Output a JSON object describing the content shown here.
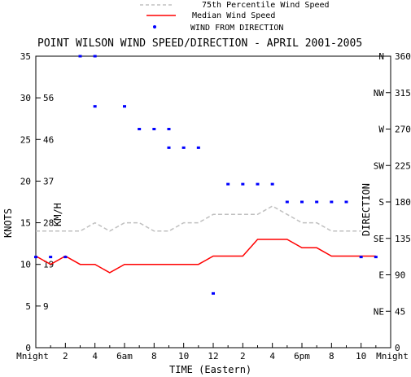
{
  "chart_data": {
    "type": "line",
    "title": "POINT WILSON WIND SPEED/DIRECTION - APRIL 2001-2005",
    "xlabel": "TIME (Eastern)",
    "ylabel_left": "KNOTS",
    "ylabel_left_inner": "KM/H",
    "ylabel_right": "DIRECTION",
    "x_ticks": [
      "Mnight",
      "2",
      "4",
      "6am",
      "8",
      "10",
      "12",
      "2",
      "4",
      "6pm",
      "8",
      "10",
      "Mnight"
    ],
    "xlim": [
      0,
      24
    ],
    "ylim": [
      0,
      35
    ],
    "knots_ticks": [
      "0",
      "5",
      "10",
      "15",
      "20",
      "25",
      "30",
      "35"
    ],
    "kmh_ticks": [
      {
        "label": "9",
        "knots": 5
      },
      {
        "label": "19",
        "knots": 10
      },
      {
        "label": "28",
        "knots": 15
      },
      {
        "label": "37",
        "knots": 20
      },
      {
        "label": "46",
        "knots": 25
      },
      {
        "label": "56",
        "knots": 30
      }
    ],
    "direction_ticks": [
      {
        "label": "N",
        "deg": 360
      },
      {
        "label": "NW",
        "deg": 315
      },
      {
        "label": "W",
        "deg": 270
      },
      {
        "label": "SW",
        "deg": 225
      },
      {
        "label": "S",
        "deg": 180
      },
      {
        "label": "SE",
        "deg": 135
      },
      {
        "label": "E",
        "deg": 90
      },
      {
        "label": "NE",
        "deg": 45
      }
    ],
    "direction_values": [
      "360",
      "315",
      "270",
      "225",
      "180",
      "135",
      "90",
      "45",
      "0"
    ],
    "legend": [
      "75th Percentile Wind Speed",
      "Median Wind Speed",
      "WIND FROM DIRECTION"
    ],
    "series": [
      {
        "name": "75th Percentile Wind Speed",
        "color": "#c0c0c0",
        "style": "dashed",
        "points": [
          [
            0,
            14
          ],
          [
            1,
            14
          ],
          [
            2,
            14
          ],
          [
            3,
            14
          ],
          [
            4,
            15
          ],
          [
            5,
            14
          ],
          [
            6,
            15
          ],
          [
            7,
            15
          ],
          [
            8,
            14
          ],
          [
            9,
            14
          ],
          [
            10,
            15
          ],
          [
            11,
            15
          ],
          [
            12,
            16
          ],
          [
            13,
            16
          ],
          [
            14,
            16
          ],
          [
            15,
            16
          ],
          [
            16,
            17
          ],
          [
            17,
            16
          ],
          [
            18,
            15
          ],
          [
            19,
            15
          ],
          [
            20,
            14
          ],
          [
            21,
            14
          ],
          [
            22,
            14
          ]
        ]
      },
      {
        "name": "Median Wind Speed",
        "color": "#ff0000",
        "style": "solid",
        "points": [
          [
            0,
            11
          ],
          [
            1,
            10
          ],
          [
            2,
            11
          ],
          [
            3,
            10
          ],
          [
            4,
            10
          ],
          [
            5,
            9
          ],
          [
            6,
            10
          ],
          [
            7,
            10
          ],
          [
            8,
            10
          ],
          [
            9,
            10
          ],
          [
            10,
            10
          ],
          [
            11,
            10
          ],
          [
            12,
            11
          ],
          [
            13,
            11
          ],
          [
            14,
            11
          ],
          [
            15,
            13
          ],
          [
            16,
            13
          ],
          [
            17,
            13
          ],
          [
            18,
            12
          ],
          [
            19,
            12
          ],
          [
            20,
            11
          ],
          [
            21,
            11
          ],
          [
            22,
            11
          ],
          [
            23,
            11
          ]
        ]
      },
      {
        "name": "WIND FROM DIRECTION",
        "color": "#0000ff",
        "style": "markers",
        "points": [
          [
            0,
            112
          ],
          [
            1,
            112
          ],
          [
            2,
            112
          ],
          [
            3,
            360
          ],
          [
            4,
            360
          ],
          [
            4,
            298
          ],
          [
            6,
            298
          ],
          [
            7,
            270
          ],
          [
            8,
            270
          ],
          [
            9,
            270
          ],
          [
            9,
            247
          ],
          [
            10,
            247
          ],
          [
            11,
            247
          ],
          [
            12,
            67
          ],
          [
            13,
            202
          ],
          [
            14,
            202
          ],
          [
            15,
            202
          ],
          [
            16,
            202
          ],
          [
            17,
            180
          ],
          [
            18,
            180
          ],
          [
            19,
            180
          ],
          [
            20,
            180
          ],
          [
            21,
            180
          ],
          [
            22,
            112
          ],
          [
            23,
            112
          ]
        ]
      }
    ]
  }
}
